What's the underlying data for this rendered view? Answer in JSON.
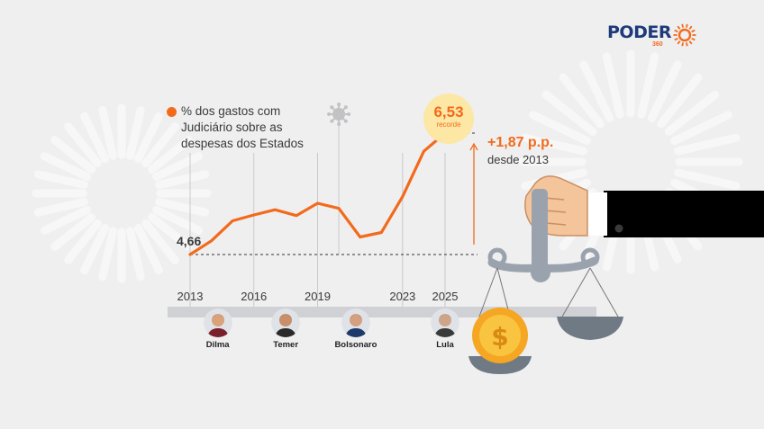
{
  "brand": {
    "name": "PODER",
    "number": "360",
    "accent": "#f26a1c",
    "navy": "#1f3a7a"
  },
  "legend": {
    "label": "% dos gastos com Judiciário sobre as despesas dos Estados",
    "marker_color": "#f26a1c"
  },
  "annotations": {
    "start_value": "4,66",
    "record_value": "6,53",
    "record_tag": "recorde",
    "change_value": "+1,87 p.p.",
    "change_since": "desde 2013"
  },
  "chart_data": {
    "type": "line",
    "x": [
      2013,
      2014,
      2015,
      2016,
      2017,
      2018,
      2019,
      2020,
      2021,
      2022,
      2023,
      2024,
      2025
    ],
    "series": [
      {
        "name": "% dos gastos com Judiciário sobre as despesas dos Estados",
        "values": [
          4.66,
          4.87,
          5.18,
          5.27,
          5.35,
          5.26,
          5.45,
          5.37,
          4.93,
          5.0,
          5.55,
          6.25,
          6.53
        ]
      }
    ],
    "x_ticks": [
      "2013",
      "2016",
      "2019",
      "2023",
      "2025"
    ],
    "xlim": [
      2013,
      2025
    ],
    "ylim": [
      4.4,
      6.9
    ],
    "grid": "vertical lines at labeled years",
    "reference_value": 4.66,
    "pandemic_marker_year": 2020,
    "line_color": "#f26a1c"
  },
  "presidents": [
    {
      "name": "Dilma",
      "year": 2014.3
    },
    {
      "name": "Temer",
      "year": 2017.5
    },
    {
      "name": "Bolsonaro",
      "year": 2020.8
    },
    {
      "name": "Lula",
      "year": 2025
    }
  ]
}
